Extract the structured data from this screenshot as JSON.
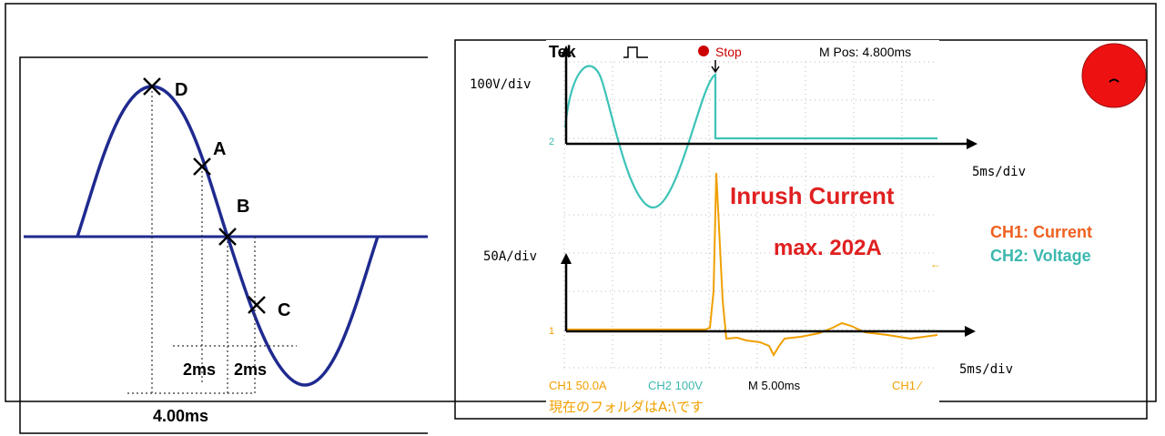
{
  "left_diagram": {
    "points": {
      "d": "D",
      "a": "A",
      "b": "B",
      "c": "C"
    },
    "dimensions": {
      "span_small_1": "2ms",
      "span_small_2": "2ms",
      "span_total": "4.00ms"
    }
  },
  "scope": {
    "brand": "Tek",
    "run_state": "Stop",
    "m_pos": "M Pos: 4.800ms",
    "ch2_scale": "100V/div",
    "ch1_scale": "50A/div",
    "time_div_upper": "5ms/div",
    "time_div_lower": "5ms/div",
    "ch2_marker": "2",
    "ch1_marker": "1",
    "bottom_bar": {
      "ch1": "CH1  50.0A",
      "ch2": "CH2  100V",
      "m": "M 5.00ms",
      "trig": "CH1 ∕"
    },
    "folder_text": "現在のフォルダはA:\\です"
  },
  "annotation": {
    "title": "Inrush Current",
    "max": "max. 202A"
  },
  "legend": {
    "ch1": "CH1: Current",
    "ch2": "CH2: Voltage"
  },
  "colors": {
    "sine": "#1f2a8f",
    "voltage": "#3cc3b7",
    "current": "#f0a000",
    "annotation": "#e02020",
    "legend_ch1": "#f06020",
    "legend_ch2": "#3cb8b0",
    "red_circle": "#ee1111"
  }
}
